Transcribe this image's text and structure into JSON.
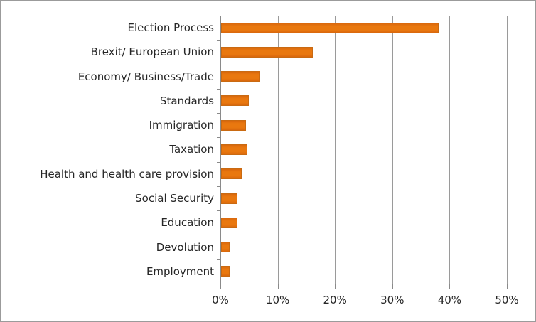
{
  "chart_data": {
    "type": "bar",
    "orientation": "horizontal",
    "title": "",
    "xlabel": "",
    "ylabel": "",
    "legend": "none",
    "grid": "vertical-gridlines",
    "xlim": [
      0,
      50
    ],
    "x_tick_values": [
      0,
      10,
      20,
      30,
      40,
      50
    ],
    "x_tick_labels": [
      "0%",
      "10%",
      "20%",
      "30%",
      "40%",
      "50%"
    ],
    "categories": [
      "Election Process",
      "Brexit/ European Union",
      "Economy/ Business/Trade",
      "Standards",
      "Immigration",
      "Taxation",
      "Health and health care provision",
      "Social Security",
      "Education",
      "Devolution",
      "Employment"
    ],
    "values": [
      38,
      16,
      6.8,
      4.8,
      4.4,
      4.6,
      3.6,
      2.8,
      2.9,
      1.5,
      1.5
    ],
    "value_unit": "%",
    "colors": {
      "bar_fill": "#E9780F",
      "bar_border": "#C96A12",
      "axis": "#8A8A8A",
      "gridline": "#9A9A9A",
      "text": "#262626",
      "frame_border": "#9B9B9B",
      "background": "#FFFFFF"
    }
  }
}
